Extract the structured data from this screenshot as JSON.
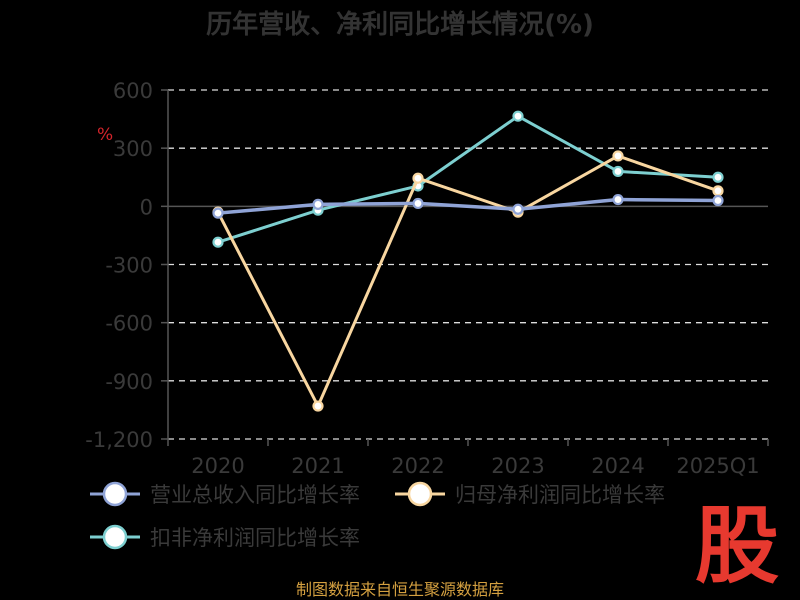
{
  "colors": {
    "background": "#000000",
    "grid": "#dddddd",
    "axis": "#555555",
    "revenue": "#8fa3d6",
    "net_profit": "#f8d6a0",
    "deducted_profit": "#7dcfd0",
    "logo": "#e7392f",
    "source": "#d4a040",
    "unit_mark": "#d4242b"
  },
  "logo_text": "股",
  "source_text": "制图数据来自恒生聚源数据库",
  "unit_mark": "%",
  "chart_data": {
    "type": "line",
    "title": "历年营收、净利同比增长情况(%)",
    "categories": [
      "2020",
      "2021",
      "2022",
      "2023",
      "2024",
      "2025Q1"
    ],
    "ylim": [
      -1200,
      600
    ],
    "yticks": [
      600,
      300,
      0,
      -300,
      -600,
      -900,
      -1200
    ],
    "ytick_labels": [
      "600",
      "300",
      "0",
      "-300",
      "-600",
      "-900",
      "-1,200"
    ],
    "grid": true,
    "legend_position": "bottom",
    "series": [
      {
        "name": "营业总收入同比增长率",
        "values": [
          -35,
          10,
          15,
          -15,
          35,
          30
        ]
      },
      {
        "name": "归母净利润同比增长率",
        "values": [
          -30,
          -1030,
          145,
          -30,
          260,
          80
        ]
      },
      {
        "name": "扣非净利润同比增长率",
        "values": [
          -185,
          -20,
          105,
          465,
          180,
          150
        ]
      }
    ]
  }
}
